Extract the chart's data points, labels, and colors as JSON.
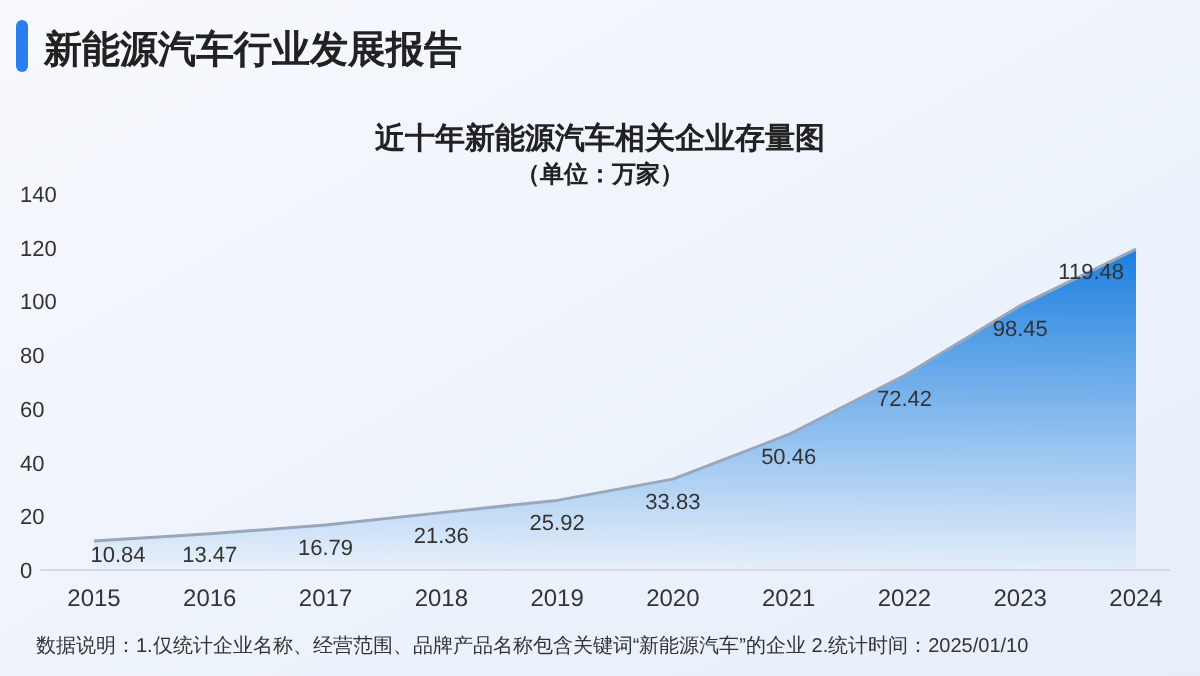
{
  "chart_data": {
    "type": "area",
    "title": "新能源汽车行业发展报告",
    "subtitle": "近十年新能源汽车相关企业存量图",
    "ylabel": "（单位：万家）",
    "categories": [
      "2015",
      "2016",
      "2017",
      "2018",
      "2019",
      "2020",
      "2021",
      "2022",
      "2023",
      "2024"
    ],
    "series": [
      {
        "color": "#1a7fe0",
        "values": [
          10.84,
          13.47,
          16.79,
          21.36,
          25.92,
          33.83,
          50.46,
          72.42,
          98.45,
          119.48
        ]
      }
    ],
    "ylim": [
      0,
      140
    ],
    "yticks": [
      0,
      20,
      40,
      60,
      80,
      100,
      120,
      140
    ],
    "data_labels": true,
    "annotations": [
      "数据说明：1.仅统计企业名称、经营范围、品牌产品名称包含关键词“新能源汽车”的企业   2.统计时间：2025/01/10"
    ]
  }
}
